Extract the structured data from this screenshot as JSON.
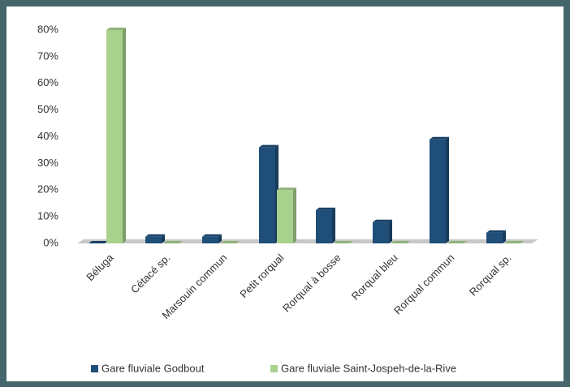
{
  "chart_data": {
    "type": "bar",
    "categories": [
      "Béluga",
      "Cétacé sp.",
      "Marsouin commun",
      "Petit rorqual",
      "Rorqual à bosse",
      "Rorqual bleu",
      "Rorqual commun",
      "Rorqual sp."
    ],
    "series": [
      {
        "name": "Gare fluviale Godbout",
        "color": "#1f4e79",
        "values": [
          0,
          2.5,
          2.5,
          36,
          12.5,
          8,
          39,
          4
        ]
      },
      {
        "name": "Gare fluviale Saint-Jospeh-de-la-Rive",
        "color": "#a9d18e",
        "values": [
          80,
          0,
          0,
          20,
          0,
          0,
          0,
          0
        ]
      }
    ],
    "ylim": [
      0,
      80
    ],
    "yticks": [
      {
        "value": 0,
        "label": "0%"
      },
      {
        "value": 10,
        "label": "10%"
      },
      {
        "value": 20,
        "label": "20%"
      },
      {
        "value": 30,
        "label": "30%"
      },
      {
        "value": 40,
        "label": "40%"
      },
      {
        "value": 50,
        "label": "50%"
      },
      {
        "value": 60,
        "label": "60%"
      },
      {
        "value": 70,
        "label": "70%"
      },
      {
        "value": 80,
        "label": "80%"
      }
    ],
    "legend": "bottom"
  }
}
